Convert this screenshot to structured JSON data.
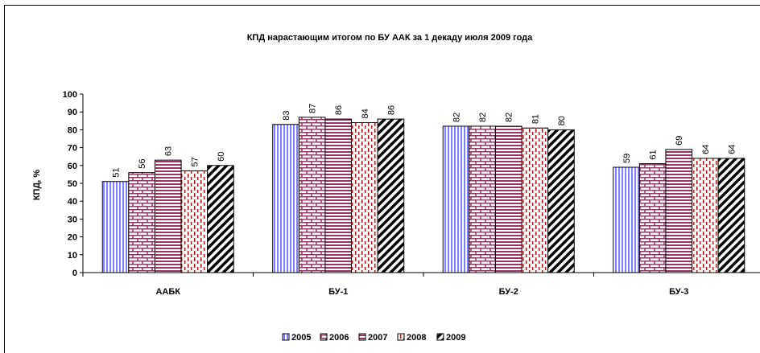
{
  "chart_data": {
    "type": "bar",
    "title": "КПД нарастающим итогом по БУ ААК за 1 декаду июля 2009 года",
    "xlabel": "",
    "ylabel": "КПД, %",
    "ylim": [
      0,
      100
    ],
    "yticks": [
      0,
      10,
      20,
      30,
      40,
      50,
      60,
      70,
      80,
      90,
      100
    ],
    "grid": false,
    "legend": "bottom",
    "categories": [
      "ААБК",
      "БУ-1",
      "БУ-2",
      "БУ-3"
    ],
    "series": [
      {
        "name": "2005",
        "values": [
          51,
          83,
          82,
          59
        ],
        "pattern": "vertical-lines",
        "color": "#8080ff"
      },
      {
        "name": "2006",
        "values": [
          56,
          87,
          82,
          61
        ],
        "pattern": "bricks",
        "color": "#993366"
      },
      {
        "name": "2007",
        "values": [
          63,
          86,
          82,
          69
        ],
        "pattern": "horizontal-lines",
        "color": "#993366"
      },
      {
        "name": "2008",
        "values": [
          57,
          84,
          81,
          64
        ],
        "pattern": "dashed-vertical",
        "color": "#ff0000"
      },
      {
        "name": "2009",
        "values": [
          60,
          86,
          80,
          64
        ],
        "pattern": "diagonal-stripes",
        "color": "#000000"
      }
    ]
  }
}
